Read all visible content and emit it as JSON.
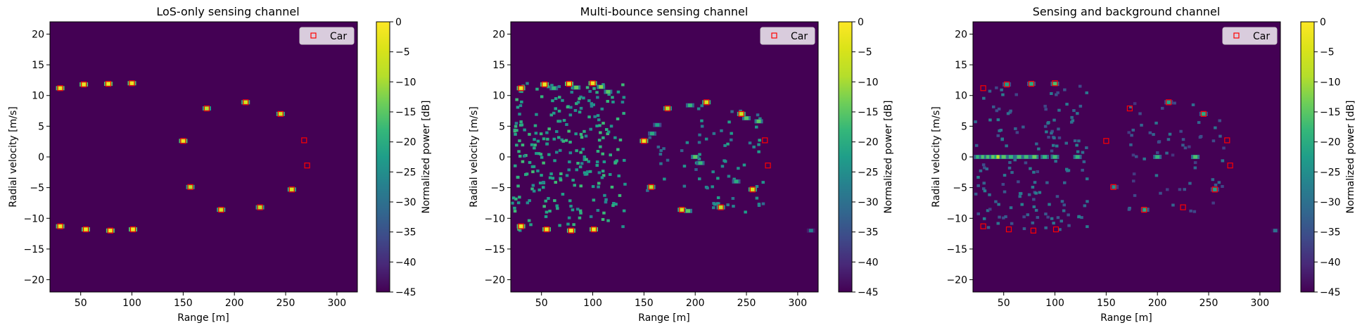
{
  "figure": {
    "background": "#ffffff",
    "plot_background": "#440154",
    "colormap": "viridis",
    "marker_color": "#ff0000"
  },
  "chart_data": [
    {
      "type": "heatmap",
      "title": "LoS-only sensing channel",
      "xlabel": "Range [m]",
      "ylabel": "Radial velocity [m/s]",
      "xlim": [
        20,
        320
      ],
      "ylim": [
        -22,
        22
      ],
      "xticks": [
        50,
        100,
        150,
        200,
        250,
        300
      ],
      "yticks": [
        -20,
        -15,
        -10,
        -5,
        0,
        5,
        10,
        15,
        20
      ],
      "colorbar": {
        "label": "Normalized power [dB]",
        "range": [
          -45,
          0
        ],
        "ticks": [
          0,
          -5,
          -10,
          -15,
          -20,
          -25,
          -30,
          -35,
          -40,
          -45
        ]
      },
      "legend": {
        "entries": [
          "Car"
        ],
        "location": "upper right"
      },
      "cars": [
        [
          30,
          11.2
        ],
        [
          53,
          11.8
        ],
        [
          77,
          11.9
        ],
        [
          100,
          12.0
        ],
        [
          30,
          -11.3
        ],
        [
          55,
          -11.8
        ],
        [
          79,
          -12.0
        ],
        [
          101,
          -11.8
        ],
        [
          150,
          2.6
        ],
        [
          157,
          -4.9
        ],
        [
          173,
          7.9
        ],
        [
          187,
          -8.6
        ],
        [
          211,
          8.9
        ],
        [
          225,
          -8.2
        ],
        [
          245,
          7.0
        ],
        [
          256,
          -5.3
        ],
        [
          268,
          2.7
        ],
        [
          271,
          -1.4
        ]
      ],
      "peaks": [
        [
          30,
          11.2,
          -2
        ],
        [
          53,
          11.8,
          -2
        ],
        [
          77,
          11.9,
          -2
        ],
        [
          100,
          12.0,
          -2
        ],
        [
          30,
          -11.3,
          -2
        ],
        [
          55,
          -11.8,
          -2
        ],
        [
          79,
          -12.0,
          -2
        ],
        [
          101,
          -11.8,
          -2
        ],
        [
          150,
          2.6,
          -2
        ],
        [
          157,
          -4.9,
          -8
        ],
        [
          173,
          7.9,
          -8
        ],
        [
          187,
          -8.6,
          -5
        ],
        [
          211,
          8.9,
          -5
        ],
        [
          225,
          -8.2,
          -8
        ],
        [
          245,
          7.0,
          -5
        ],
        [
          256,
          -5.3,
          -5
        ]
      ],
      "clutter": []
    },
    {
      "type": "heatmap",
      "title": "Multi-bounce sensing channel",
      "xlabel": "Range [m]",
      "ylabel": "Radial velocity [m/s]",
      "xlim": [
        20,
        320
      ],
      "ylim": [
        -22,
        22
      ],
      "xticks": [
        50,
        100,
        150,
        200,
        250,
        300
      ],
      "yticks": [
        -20,
        -15,
        -10,
        -5,
        0,
        5,
        10,
        15,
        20
      ],
      "colorbar": {
        "label": "Normalized power [dB]",
        "range": [
          -45,
          0
        ],
        "ticks": [
          0,
          -5,
          -10,
          -15,
          -20,
          -25,
          -30,
          -35,
          -40,
          -45
        ]
      },
      "legend": {
        "entries": [
          "Car"
        ],
        "location": "upper right"
      },
      "cars": [
        [
          30,
          11.2
        ],
        [
          53,
          11.8
        ],
        [
          77,
          11.9
        ],
        [
          100,
          12.0
        ],
        [
          30,
          -11.3
        ],
        [
          55,
          -11.8
        ],
        [
          79,
          -12.0
        ],
        [
          101,
          -11.8
        ],
        [
          150,
          2.6
        ],
        [
          157,
          -4.9
        ],
        [
          173,
          7.9
        ],
        [
          187,
          -8.6
        ],
        [
          211,
          8.9
        ],
        [
          225,
          -8.2
        ],
        [
          245,
          7.0
        ],
        [
          256,
          -5.3
        ],
        [
          268,
          2.7
        ],
        [
          271,
          -1.4
        ]
      ],
      "peaks": [
        [
          30,
          11.2,
          -2
        ],
        [
          53,
          11.8,
          -2
        ],
        [
          77,
          11.9,
          -2
        ],
        [
          100,
          12.0,
          -2
        ],
        [
          30,
          -11.3,
          -2
        ],
        [
          55,
          -11.8,
          -2
        ],
        [
          79,
          -12.0,
          -2
        ],
        [
          101,
          -11.8,
          -2
        ],
        [
          150,
          2.6,
          -2
        ],
        [
          157,
          -4.9,
          -8
        ],
        [
          173,
          7.9,
          -8
        ],
        [
          187,
          -8.6,
          -5
        ],
        [
          211,
          8.9,
          -5
        ],
        [
          225,
          -8.2,
          -8
        ],
        [
          245,
          7.0,
          -5
        ],
        [
          256,
          -5.3,
          -5
        ],
        [
          108,
          11.4,
          -12
        ],
        [
          115,
          10.6,
          -15
        ],
        [
          84,
          11.3,
          -14
        ],
        [
          62,
          11.2,
          -18
        ],
        [
          200,
          0,
          -15
        ],
        [
          205,
          -1,
          -18
        ],
        [
          193,
          -8.8,
          -15
        ],
        [
          250,
          6.3,
          -15
        ],
        [
          262,
          5.8,
          -15
        ],
        [
          240,
          -4.0,
          -20
        ],
        [
          158,
          3.8,
          -20
        ],
        [
          163,
          5.2,
          -22
        ],
        [
          195,
          8.4,
          -18
        ],
        [
          313,
          -12.0,
          -28
        ]
      ],
      "clutter": [
        [
          20,
          130,
          -12,
          12,
          -22,
          260,
          11
        ],
        [
          200,
          265,
          -9,
          9,
          -26,
          55,
          23
        ],
        [
          150,
          200,
          -6,
          6,
          -28,
          15,
          37
        ]
      ]
    },
    {
      "type": "heatmap",
      "title": "Sensing and background channel",
      "xlabel": "Range [m]",
      "ylabel": "Radial velocity [m/s]",
      "xlim": [
        20,
        320
      ],
      "ylim": [
        -22,
        22
      ],
      "xticks": [
        50,
        100,
        150,
        200,
        250,
        300
      ],
      "yticks": [
        -20,
        -15,
        -10,
        -5,
        0,
        5,
        10,
        15,
        20
      ],
      "colorbar": {
        "label": "Normalized power [dB]",
        "range": [
          -45,
          0
        ],
        "ticks": [
          0,
          -5,
          -10,
          -15,
          -20,
          -25,
          -30,
          -35,
          -40,
          -45
        ]
      },
      "legend": {
        "entries": [
          "Car"
        ],
        "location": "upper right"
      },
      "cars": [
        [
          30,
          11.2
        ],
        [
          53,
          11.8
        ],
        [
          77,
          11.9
        ],
        [
          100,
          12.0
        ],
        [
          30,
          -11.3
        ],
        [
          55,
          -11.8
        ],
        [
          79,
          -12.0
        ],
        [
          101,
          -11.8
        ],
        [
          150,
          2.6
        ],
        [
          157,
          -4.9
        ],
        [
          173,
          7.9
        ],
        [
          187,
          -8.6
        ],
        [
          211,
          8.9
        ],
        [
          225,
          -8.2
        ],
        [
          245,
          7.0
        ],
        [
          256,
          -5.3
        ],
        [
          268,
          2.7
        ],
        [
          271,
          -1.4
        ]
      ],
      "peaks": [
        [
          25,
          0,
          -18
        ],
        [
          30,
          0,
          -16
        ],
        [
          35,
          0,
          -16
        ],
        [
          40,
          0,
          -14
        ],
        [
          45,
          0,
          -8
        ],
        [
          50,
          0,
          -15
        ],
        [
          57,
          0,
          -18
        ],
        [
          65,
          0,
          -16
        ],
        [
          72,
          0,
          -17
        ],
        [
          80,
          0,
          -14
        ],
        [
          90,
          0,
          -18
        ],
        [
          100,
          0,
          -17
        ],
        [
          122,
          0,
          -18
        ],
        [
          200,
          0,
          -18
        ],
        [
          237,
          0,
          -16
        ],
        [
          100,
          11.9,
          -16
        ],
        [
          77,
          11.9,
          -20
        ],
        [
          53,
          11.8,
          -22
        ],
        [
          188,
          -8.6,
          -20
        ],
        [
          245,
          7.0,
          -20
        ],
        [
          211,
          8.9,
          -22
        ],
        [
          256,
          -5.3,
          -22
        ],
        [
          158,
          -4.9,
          -25
        ],
        [
          315,
          -12.0,
          -30
        ]
      ],
      "clutter": [
        [
          20,
          130,
          -12,
          12,
          -32,
          150,
          53
        ],
        [
          165,
          265,
          -9,
          9,
          -34,
          60,
          71
        ]
      ]
    }
  ]
}
